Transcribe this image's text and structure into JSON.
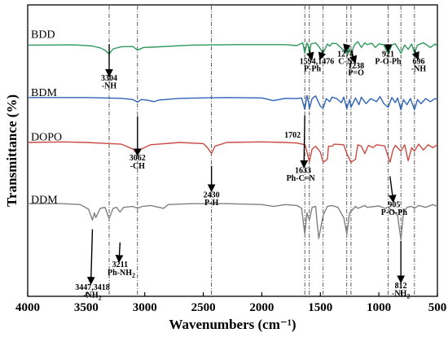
{
  "chart_data": {
    "type": "line",
    "xlabel": "Wavenumbers (cm⁻¹)",
    "ylabel": "Transmittance (%)",
    "xlim": [
      4000,
      500
    ],
    "x_ticks": [
      "4000",
      "3500",
      "3000",
      "2500",
      "2000",
      "1500",
      "1000",
      "500"
    ],
    "grid": false,
    "legend": "none",
    "reference_lines": [
      3304,
      3062,
      2430,
      1633,
      1594,
      1476,
      1274,
      1238,
      921,
      812,
      696
    ],
    "series": [
      {
        "name": "BDD",
        "color": "#2e9a5c",
        "band": [
          0.91,
          0.83
        ],
        "points": [
          [
            4000,
            0.4
          ],
          [
            3600,
            0.41
          ],
          [
            3450,
            0.36
          ],
          [
            3380,
            0.28
          ],
          [
            3340,
            0.18
          ],
          [
            3304,
            0.02
          ],
          [
            3270,
            0.24
          ],
          [
            3200,
            0.33
          ],
          [
            3100,
            0.34
          ],
          [
            3062,
            0.18
          ],
          [
            3010,
            0.3
          ],
          [
            2950,
            0.31
          ],
          [
            2600,
            0.4
          ],
          [
            2200,
            0.42
          ],
          [
            1800,
            0.42
          ],
          [
            1700,
            0.38
          ],
          [
            1650,
            0.5
          ],
          [
            1633,
            0.05
          ],
          [
            1615,
            0.5
          ],
          [
            1600,
            0.3
          ],
          [
            1594,
            0.0
          ],
          [
            1580,
            0.45
          ],
          [
            1540,
            0.5
          ],
          [
            1510,
            0.32
          ],
          [
            1476,
            0.05
          ],
          [
            1440,
            0.45
          ],
          [
            1420,
            0.35
          ],
          [
            1400,
            0.48
          ],
          [
            1360,
            0.46
          ],
          [
            1310,
            0.22
          ],
          [
            1274,
            0.03
          ],
          [
            1258,
            0.3
          ],
          [
            1238,
            0.0
          ],
          [
            1210,
            0.4
          ],
          [
            1180,
            0.55
          ],
          [
            1150,
            0.3
          ],
          [
            1120,
            0.5
          ],
          [
            1100,
            0.42
          ],
          [
            1060,
            0.48
          ],
          [
            1030,
            0.3
          ],
          [
            1000,
            0.45
          ],
          [
            960,
            0.42
          ],
          [
            921,
            0.02
          ],
          [
            890,
            0.4
          ],
          [
            860,
            0.46
          ],
          [
            840,
            0.3
          ],
          [
            812,
            0.05
          ],
          [
            780,
            0.4
          ],
          [
            750,
            0.22
          ],
          [
            720,
            0.45
          ],
          [
            696,
            0.06
          ],
          [
            670,
            0.4
          ],
          [
            620,
            0.5
          ],
          [
            560,
            0.3
          ],
          [
            520,
            0.45
          ],
          [
            500,
            0.35
          ]
        ]
      },
      {
        "name": "BDM",
        "color": "#2f63b8",
        "band": [
          0.71,
          0.64
        ],
        "points": [
          [
            4000,
            0.6
          ],
          [
            3500,
            0.6
          ],
          [
            3200,
            0.56
          ],
          [
            3100,
            0.5
          ],
          [
            3062,
            0.38
          ],
          [
            3030,
            0.5
          ],
          [
            2980,
            0.48
          ],
          [
            2920,
            0.4
          ],
          [
            2880,
            0.48
          ],
          [
            2700,
            0.56
          ],
          [
            2300,
            0.6
          ],
          [
            2000,
            0.58
          ],
          [
            1900,
            0.45
          ],
          [
            1800,
            0.56
          ],
          [
            1702,
            0.55
          ],
          [
            1660,
            0.58
          ],
          [
            1633,
            0.02
          ],
          [
            1615,
            0.7
          ],
          [
            1600,
            0.35
          ],
          [
            1594,
            0.05
          ],
          [
            1570,
            0.55
          ],
          [
            1540,
            0.68
          ],
          [
            1500,
            0.18
          ],
          [
            1476,
            0.08
          ],
          [
            1450,
            0.55
          ],
          [
            1420,
            0.4
          ],
          [
            1400,
            0.62
          ],
          [
            1360,
            0.55
          ],
          [
            1320,
            0.35
          ],
          [
            1300,
            0.62
          ],
          [
            1274,
            0.05
          ],
          [
            1250,
            0.5
          ],
          [
            1238,
            0.12
          ],
          [
            1200,
            0.58
          ],
          [
            1170,
            0.25
          ],
          [
            1150,
            0.62
          ],
          [
            1110,
            0.3
          ],
          [
            1070,
            0.55
          ],
          [
            1020,
            0.4
          ],
          [
            990,
            0.65
          ],
          [
            960,
            0.32
          ],
          [
            921,
            0.12
          ],
          [
            890,
            0.6
          ],
          [
            860,
            0.35
          ],
          [
            840,
            0.58
          ],
          [
            812,
            0.0
          ],
          [
            790,
            0.5
          ],
          [
            760,
            0.25
          ],
          [
            730,
            0.55
          ],
          [
            696,
            0.0
          ],
          [
            670,
            0.5
          ],
          [
            640,
            0.3
          ],
          [
            600,
            0.55
          ],
          [
            560,
            0.4
          ],
          [
            520,
            0.55
          ],
          [
            500,
            0.5
          ]
        ]
      },
      {
        "name": "DOPO",
        "color": "#c94a42",
        "band": [
          0.56,
          0.46
        ],
        "points": [
          [
            4000,
            0.68
          ],
          [
            3700,
            0.7
          ],
          [
            3500,
            0.68
          ],
          [
            3200,
            0.62
          ],
          [
            3100,
            0.45
          ],
          [
            3062,
            0.28
          ],
          [
            3030,
            0.45
          ],
          [
            2950,
            0.6
          ],
          [
            2700,
            0.68
          ],
          [
            2500,
            0.64
          ],
          [
            2460,
            0.48
          ],
          [
            2430,
            0.3
          ],
          [
            2400,
            0.55
          ],
          [
            2300,
            0.68
          ],
          [
            2000,
            0.7
          ],
          [
            1800,
            0.68
          ],
          [
            1700,
            0.66
          ],
          [
            1630,
            0.6
          ],
          [
            1594,
            0.02
          ],
          [
            1570,
            0.45
          ],
          [
            1540,
            0.55
          ],
          [
            1500,
            0.35
          ],
          [
            1476,
            0.0
          ],
          [
            1440,
            0.1
          ],
          [
            1430,
            0.55
          ],
          [
            1400,
            0.55
          ],
          [
            1380,
            0.62
          ],
          [
            1300,
            0.6
          ],
          [
            1274,
            0.3
          ],
          [
            1238,
            0.0
          ],
          [
            1200,
            0.1
          ],
          [
            1180,
            0.6
          ],
          [
            1150,
            0.55
          ],
          [
            1120,
            0.3
          ],
          [
            1090,
            0.58
          ],
          [
            1050,
            0.5
          ],
          [
            1020,
            0.6
          ],
          [
            950,
            0.56
          ],
          [
            921,
            0.2
          ],
          [
            905,
            0.0
          ],
          [
            880,
            0.42
          ],
          [
            860,
            0.58
          ],
          [
            812,
            0.38
          ],
          [
            780,
            0.6
          ],
          [
            750,
            0.05
          ],
          [
            720,
            0.5
          ],
          [
            696,
            0.38
          ],
          [
            660,
            0.62
          ],
          [
            620,
            0.42
          ],
          [
            580,
            0.6
          ],
          [
            540,
            0.5
          ],
          [
            500,
            0.6
          ]
        ]
      },
      {
        "name": "DDM",
        "color": "#808080",
        "band": [
          0.35,
          0.19
        ],
        "points": [
          [
            4000,
            0.8
          ],
          [
            3700,
            0.8
          ],
          [
            3550,
            0.78
          ],
          [
            3480,
            0.68
          ],
          [
            3447,
            0.45
          ],
          [
            3430,
            0.6
          ],
          [
            3418,
            0.5
          ],
          [
            3380,
            0.7
          ],
          [
            3340,
            0.72
          ],
          [
            3304,
            0.48
          ],
          [
            3270,
            0.7
          ],
          [
            3240,
            0.72
          ],
          [
            3211,
            0.62
          ],
          [
            3180,
            0.72
          ],
          [
            3100,
            0.74
          ],
          [
            3062,
            0.7
          ],
          [
            3020,
            0.74
          ],
          [
            2950,
            0.76
          ],
          [
            2840,
            0.7
          ],
          [
            2800,
            0.78
          ],
          [
            2600,
            0.8
          ],
          [
            2300,
            0.8
          ],
          [
            2000,
            0.78
          ],
          [
            1900,
            0.74
          ],
          [
            1800,
            0.78
          ],
          [
            1700,
            0.76
          ],
          [
            1660,
            0.7
          ],
          [
            1633,
            0.15
          ],
          [
            1615,
            0.6
          ],
          [
            1594,
            0.45
          ],
          [
            1570,
            0.72
          ],
          [
            1540,
            0.74
          ],
          [
            1514,
            0.05
          ],
          [
            1476,
            0.55
          ],
          [
            1440,
            0.74
          ],
          [
            1400,
            0.76
          ],
          [
            1350,
            0.72
          ],
          [
            1300,
            0.5
          ],
          [
            1274,
            0.15
          ],
          [
            1250,
            0.6
          ],
          [
            1200,
            0.74
          ],
          [
            1180,
            0.7
          ],
          [
            1120,
            0.76
          ],
          [
            1100,
            0.72
          ],
          [
            1000,
            0.75
          ],
          [
            950,
            0.7
          ],
          [
            921,
            0.72
          ],
          [
            870,
            0.62
          ],
          [
            840,
            0.55
          ],
          [
            812,
            0.02
          ],
          [
            790,
            0.6
          ],
          [
            760,
            0.72
          ],
          [
            720,
            0.74
          ],
          [
            696,
            0.7
          ],
          [
            660,
            0.76
          ],
          [
            600,
            0.72
          ],
          [
            540,
            0.78
          ],
          [
            500,
            0.74
          ]
        ]
      }
    ],
    "annotations": [
      {
        "text": "3304",
        "x": 3304,
        "y": 0.74
      },
      {
        "text": "-NH",
        "x": 3304,
        "y": 0.714
      },
      {
        "text": "3062",
        "x": 3062,
        "y": 0.466
      },
      {
        "text": "-CH",
        "x": 3062,
        "y": 0.438
      },
      {
        "text": "1702",
        "x": 1738,
        "y": 0.545
      },
      {
        "text": "1633",
        "x": 1648,
        "y": 0.423
      },
      {
        "text": "Ph-C=N",
        "x": 1668,
        "y": 0.397
      },
      {
        "text": "2430",
        "x": 2430,
        "y": 0.34
      },
      {
        "text": "P-H",
        "x": 2430,
        "y": 0.313
      },
      {
        "text": "1594,1476",
        "x": 1530,
        "y": 0.797
      },
      {
        "text": "P-Ph",
        "x": 1568,
        "y": 0.773
      },
      {
        "text": "1274",
        "x": 1285,
        "y": 0.823
      },
      {
        "text": "C-N",
        "x": 1285,
        "y": 0.797
      },
      {
        "text": "1238",
        "x": 1195,
        "y": 0.782
      },
      {
        "text": "P=O",
        "x": 1195,
        "y": 0.758
      },
      {
        "text": "921",
        "x": 921,
        "y": 0.823
      },
      {
        "text": "P-O-Ph",
        "x": 921,
        "y": 0.797
      },
      {
        "text": "696",
        "x": 660,
        "y": 0.797
      },
      {
        "text": "-NH",
        "x": 660,
        "y": 0.773
      },
      {
        "text": "905",
        "x": 870,
        "y": 0.306
      },
      {
        "text": "P-O-Ph",
        "x": 870,
        "y": 0.279
      },
      {
        "text": "3211",
        "x": 3211,
        "y": 0.1
      },
      {
        "text": "Ph-NH",
        "x": 3200,
        "y": 0.073,
        "sub": "2"
      },
      {
        "text": "3447,3418",
        "x": 3447,
        "y": 0.023
      },
      {
        "text": "-NH",
        "x": 3447,
        "y": -0.004,
        "sub": "2"
      },
      {
        "text": "812",
        "x": 812,
        "y": 0.028
      },
      {
        "text": "-NH",
        "x": 812,
        "y": 0.001,
        "sub": "2"
      }
    ],
    "arrows": [
      {
        "from": [
          3304,
          0.865
        ],
        "to": [
          3304,
          0.76
        ]
      },
      {
        "from": [
          3062,
          0.618
        ],
        "to": [
          3062,
          0.488
        ]
      },
      {
        "from": [
          1633,
          0.62
        ],
        "to": [
          1640,
          0.447
        ]
      },
      {
        "from": [
          2430,
          0.448
        ],
        "to": [
          2430,
          0.365
        ]
      },
      {
        "from": [
          1594,
          0.845
        ],
        "to": [
          1575,
          0.817
        ]
      },
      {
        "from": [
          1476,
          0.845
        ],
        "to": [
          1500,
          0.817
        ]
      },
      {
        "from": [
          1274,
          0.862
        ],
        "to": [
          1285,
          0.845
        ]
      },
      {
        "from": [
          1238,
          0.845
        ],
        "to": [
          1205,
          0.805
        ]
      },
      {
        "from": [
          921,
          0.865
        ],
        "to": [
          921,
          0.845
        ]
      },
      {
        "from": [
          696,
          0.845
        ],
        "to": [
          668,
          0.818
        ]
      },
      {
        "from": [
          905,
          0.412
        ],
        "to": [
          878,
          0.328
        ]
      },
      {
        "from": [
          3211,
          0.185
        ],
        "to": [
          3220,
          0.122
        ]
      },
      {
        "from": [
          3447,
          0.23
        ],
        "to": [
          3460,
          0.047
        ]
      },
      {
        "from": [
          812,
          0.19
        ],
        "to": [
          812,
          0.052
        ]
      }
    ]
  }
}
